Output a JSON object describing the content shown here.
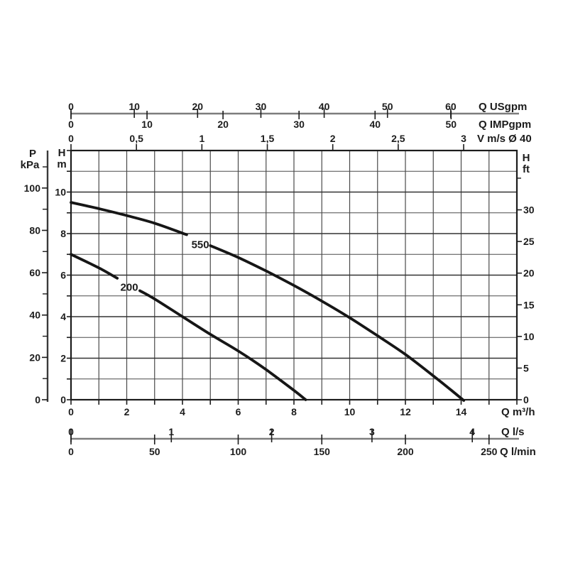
{
  "chart_data": {
    "type": "line",
    "x_axis": {
      "title": "Q m³/h",
      "unit": "m³/h",
      "range": [
        0,
        16
      ],
      "grid_step": 1,
      "labeled_ticks": [
        {
          "label": "0",
          "q": 0
        },
        {
          "label": "2",
          "q": 2
        },
        {
          "label": "4",
          "q": 4
        },
        {
          "label": "6",
          "q": 6
        },
        {
          "label": "8",
          "q": 8
        },
        {
          "label": "10",
          "q": 10
        },
        {
          "label": "12",
          "q": 12
        },
        {
          "label": "14",
          "q": 14
        }
      ]
    },
    "y_axis": {
      "title_lines": [
        "H",
        "m"
      ],
      "unit": "m",
      "range": [
        0,
        12
      ],
      "grid_step": 1,
      "labeled_ticks": [
        {
          "label": "0",
          "h": 0
        },
        {
          "label": "2",
          "h": 2
        },
        {
          "label": "4",
          "h": 4
        },
        {
          "label": "6",
          "h": 6
        },
        {
          "label": "8",
          "h": 8
        },
        {
          "label": "10",
          "h": 10
        }
      ]
    },
    "top_axes": [
      {
        "name": "usgpm",
        "title": "Q USgpm",
        "ticks": [
          {
            "label": "0",
            "q": 0
          },
          {
            "label": "10",
            "q": 2.271
          },
          {
            "label": "20",
            "q": 4.542
          },
          {
            "label": "30",
            "q": 6.814
          },
          {
            "label": "40",
            "q": 9.085
          },
          {
            "label": "50",
            "q": 11.356
          },
          {
            "label": "60",
            "q": 13.627
          }
        ]
      },
      {
        "name": "impgpm",
        "title": "Q IMPgpm",
        "ticks": [
          {
            "label": "0",
            "q": 0
          },
          {
            "label": "10",
            "q": 2.728
          },
          {
            "label": "20",
            "q": 5.455
          },
          {
            "label": "30",
            "q": 8.183
          },
          {
            "label": "40",
            "q": 10.911
          },
          {
            "label": "50",
            "q": 13.638
          }
        ]
      },
      {
        "name": "v-ms",
        "title": "V m/s Ø 40",
        "ticks": [
          {
            "label": "0",
            "q": 0
          },
          {
            "label": "0,5",
            "q": 2.348
          },
          {
            "label": "1",
            "q": 4.697
          },
          {
            "label": "1,5",
            "q": 7.045
          },
          {
            "label": "2",
            "q": 9.393
          },
          {
            "label": "2,5",
            "q": 11.742
          },
          {
            "label": "3",
            "q": 14.09
          }
        ]
      }
    ],
    "bottom_axes": [
      {
        "name": "l-s",
        "title": "Q l/s",
        "ticks": [
          {
            "label": "0",
            "q": 0
          },
          {
            "label": "1",
            "q": 3.6
          },
          {
            "label": "2",
            "q": 7.2
          },
          {
            "label": "3",
            "q": 10.8
          },
          {
            "label": "4",
            "q": 14.4
          }
        ]
      },
      {
        "name": "l-min",
        "title": "Q l/min",
        "ticks": [
          {
            "label": "0",
            "q": 0
          },
          {
            "label": "50",
            "q": 3
          },
          {
            "label": "100",
            "q": 6
          },
          {
            "label": "150",
            "q": 9
          },
          {
            "label": "200",
            "q": 12
          },
          {
            "label": "250",
            "q": 15
          }
        ]
      }
    ],
    "left_axis_kpa": {
      "title_lines": [
        "P",
        "kPa"
      ],
      "labeled_ticks": [
        {
          "label": "0",
          "h": 0
        },
        {
          "label": "20",
          "h": 2.039
        },
        {
          "label": "40",
          "h": 4.077
        },
        {
          "label": "60",
          "h": 6.116
        },
        {
          "label": "80",
          "h": 8.155
        },
        {
          "label": "100",
          "h": 10.194
        }
      ],
      "minor_ticks_h": [
        1.019,
        3.058,
        5.097,
        7.136,
        9.174,
        11.213
      ]
    },
    "right_axis_ft": {
      "title_lines": [
        "H",
        "ft"
      ],
      "labeled_ticks": [
        {
          "label": "0",
          "h": 0
        },
        {
          "label": "5",
          "h": 1.524
        },
        {
          "label": "10",
          "h": 3.048
        },
        {
          "label": "15",
          "h": 4.572
        },
        {
          "label": "20",
          "h": 6.096
        },
        {
          "label": "25",
          "h": 7.62
        },
        {
          "label": "30",
          "h": 9.144
        }
      ],
      "minor_ticks_h": [
        10.668
      ]
    },
    "series": [
      {
        "name": "550",
        "label": "550",
        "label_at": {
          "q": 4.64,
          "h": 7.45
        },
        "segments": [
          [
            [
              0,
              9.5
            ],
            [
              1,
              9.2
            ],
            [
              2,
              8.87
            ],
            [
              3,
              8.5
            ],
            [
              4,
              8.02
            ],
            [
              4.15,
              7.95
            ]
          ],
          [
            [
              5.0,
              7.42
            ],
            [
              6,
              6.85
            ],
            [
              7,
              6.2
            ],
            [
              8,
              5.5
            ],
            [
              9,
              4.75
            ],
            [
              10,
              3.95
            ],
            [
              11,
              3.08
            ],
            [
              12,
              2.18
            ],
            [
              13,
              1.15
            ],
            [
              14,
              0.07
            ],
            [
              14.06,
              0
            ]
          ]
        ]
      },
      {
        "name": "200",
        "label": "200",
        "label_at": {
          "q": 2.09,
          "h": 5.4
        },
        "segments": [
          [
            [
              0,
              7.0
            ],
            [
              1,
              6.35
            ],
            [
              1.66,
              5.85
            ]
          ],
          [
            [
              2.47,
              5.25
            ],
            [
              3,
              4.85
            ],
            [
              4,
              4.0
            ],
            [
              5,
              3.15
            ],
            [
              6,
              2.35
            ],
            [
              7,
              1.45
            ],
            [
              8,
              0.45
            ],
            [
              8.42,
              0
            ]
          ]
        ]
      }
    ]
  },
  "colors": {
    "background": "#ffffff",
    "ink": "#1c1c1c",
    "grid": "#4a4a4a",
    "grid_major": "#323232",
    "secondary_axis_line": "#7d7d7d",
    "curve": "#161616"
  }
}
